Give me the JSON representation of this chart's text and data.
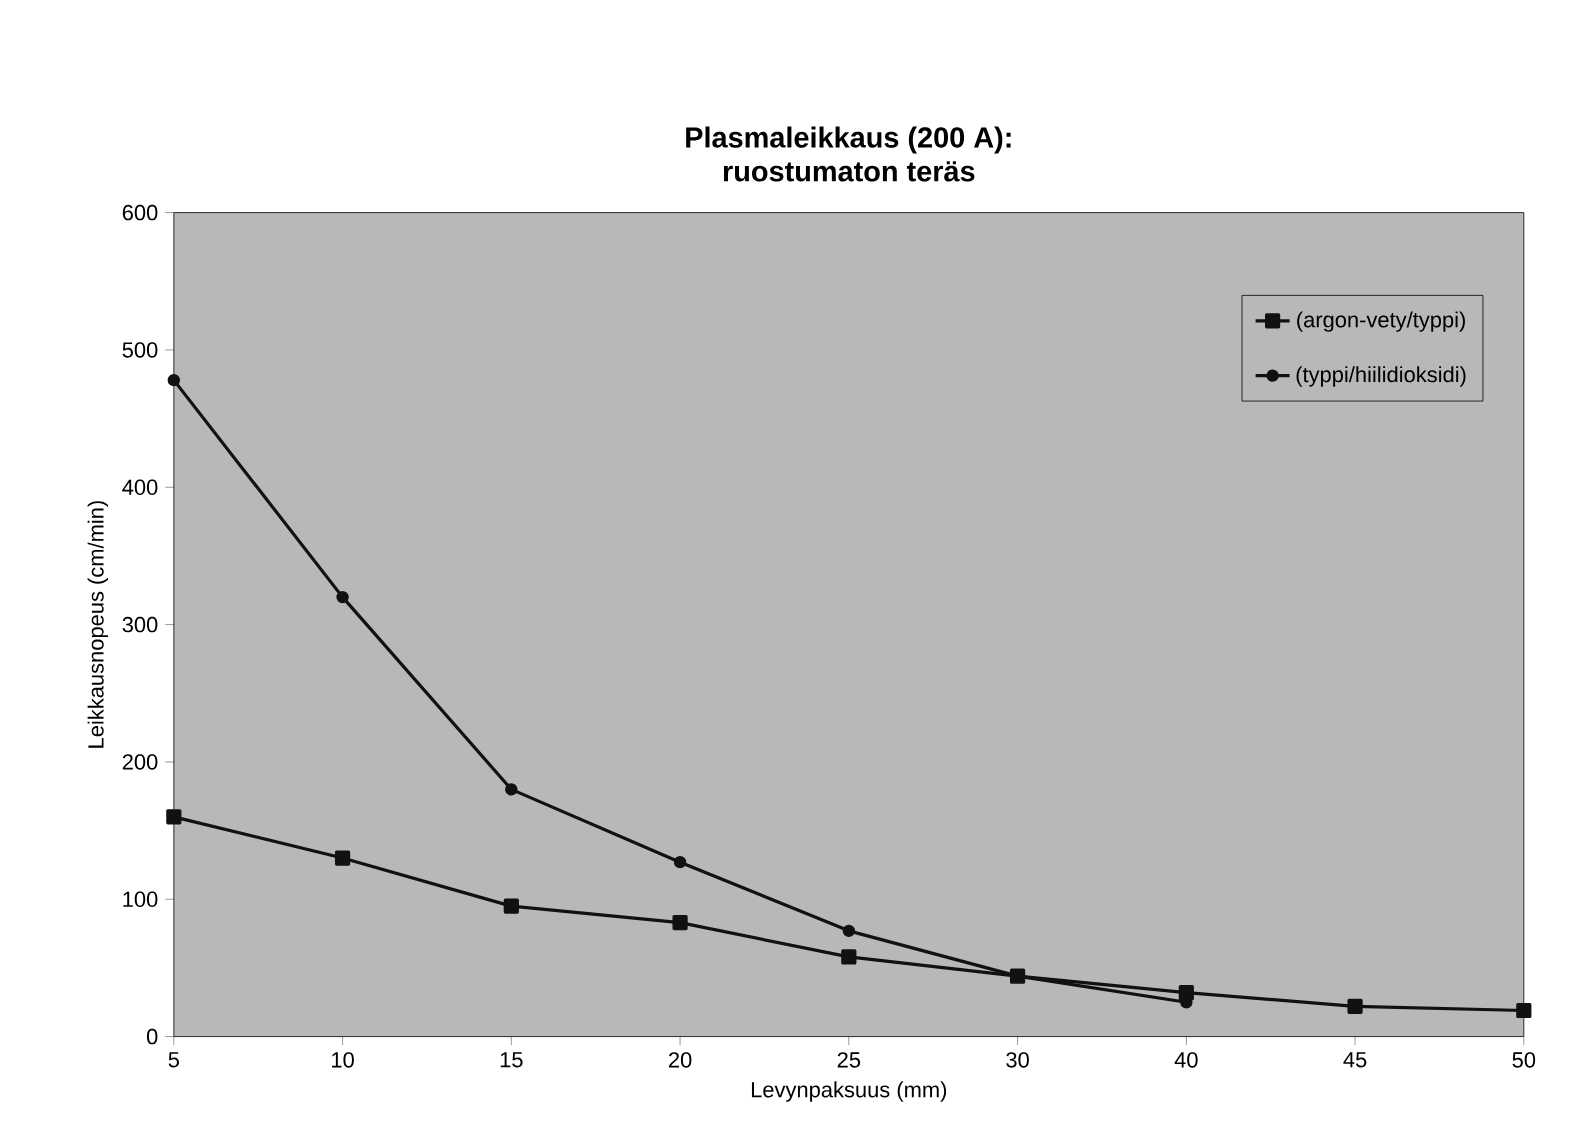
{
  "chart_data": {
    "type": "line",
    "title": "Plasmaleikkaus (200 A):\nruostumaton teräs",
    "xlabel": "Levynpaksuus (mm)",
    "ylabel": "Leikkausnopeus (cm/min)",
    "categories": [
      "5",
      "10",
      "15",
      "20",
      "25",
      "30",
      "40",
      "45",
      "50"
    ],
    "series": [
      {
        "name": "(argon-vety/typpi)",
        "color": "#111111",
        "marker": "square",
        "values": [
          160,
          130,
          95,
          83,
          58,
          44,
          32,
          22,
          19
        ]
      },
      {
        "name": "(typpi/hiilidioksidi)",
        "color": "#111111",
        "marker": "circle",
        "values": [
          478,
          320,
          180,
          127,
          77,
          44,
          25,
          null,
          null
        ]
      }
    ],
    "ylim": [
      0,
      600
    ],
    "yticks": [
      0,
      100,
      200,
      300,
      400,
      500,
      600
    ],
    "legend": "top right",
    "grid": false,
    "line_style": "solid"
  }
}
